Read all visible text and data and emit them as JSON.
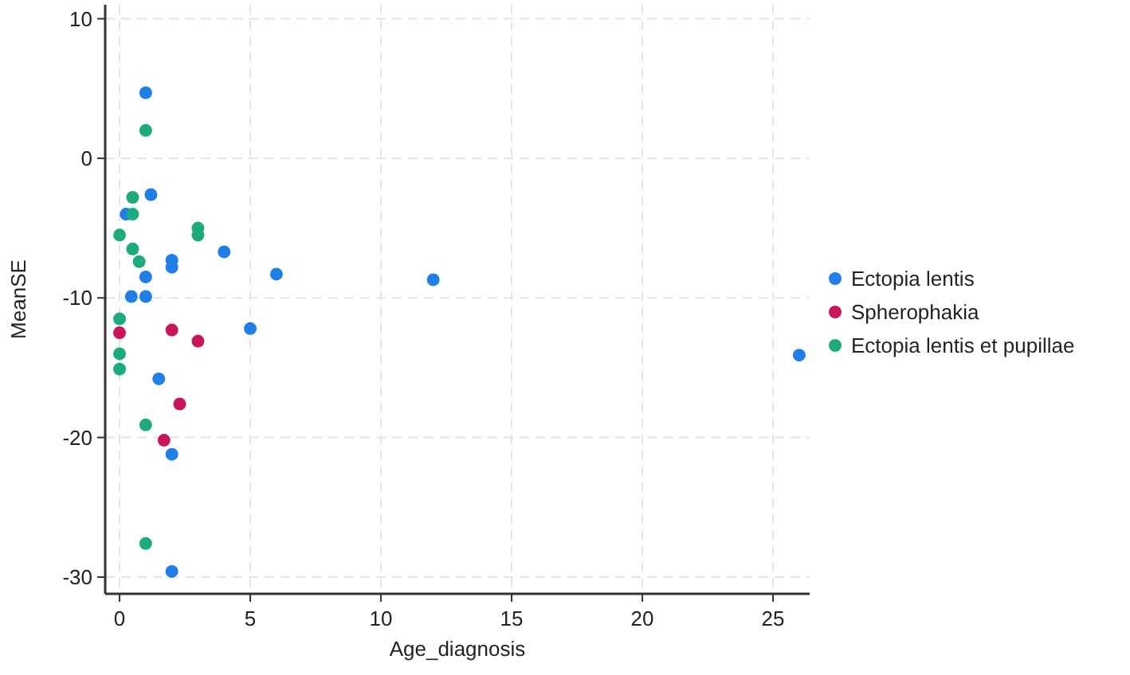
{
  "chart_data": {
    "type": "scatter",
    "xlabel": "Age_diagnosis",
    "ylabel": "MeanSE",
    "xlim": [
      -0.55,
      26.4
    ],
    "xticks": [
      0,
      5,
      10,
      15,
      20,
      25
    ],
    "ylim": [
      -31.2,
      11
    ],
    "yticks": [
      -30,
      -20,
      -10,
      0,
      10
    ],
    "grid": true,
    "legend": "right",
    "marker": "circle",
    "series": [
      {
        "name": "Ectopia lentis",
        "color": "#1f7ee8",
        "x": [
          1,
          1.2,
          0.25,
          4,
          2,
          2,
          1,
          0.45,
          1,
          5,
          1.5,
          2,
          2,
          6,
          12,
          26
        ],
        "values": [
          4.7,
          -2.6,
          -4,
          -6.7,
          -7.3,
          -7.8,
          -8.5,
          -9.9,
          -9.9,
          -12.2,
          -15.8,
          -21.2,
          -29.6,
          -8.3,
          -8.7,
          -14.1
        ]
      },
      {
        "name": "Spherophakia",
        "color": "#c9155a",
        "x": [
          0,
          2,
          3,
          2.3,
          1.7
        ],
        "values": [
          -12.5,
          -12.3,
          -13.1,
          -17.6,
          -20.2
        ]
      },
      {
        "name": "Ectopia lentis et pupillae",
        "color": "#1bab7d",
        "x": [
          1,
          0.5,
          0.5,
          0,
          3,
          3,
          0.5,
          0.75,
          0,
          0,
          0,
          1,
          1
        ],
        "values": [
          2,
          -2.8,
          -4,
          -5.5,
          -5,
          -5.5,
          -6.5,
          -7.4,
          -11.5,
          -14,
          -15.1,
          -19.1,
          -27.6
        ]
      }
    ]
  }
}
